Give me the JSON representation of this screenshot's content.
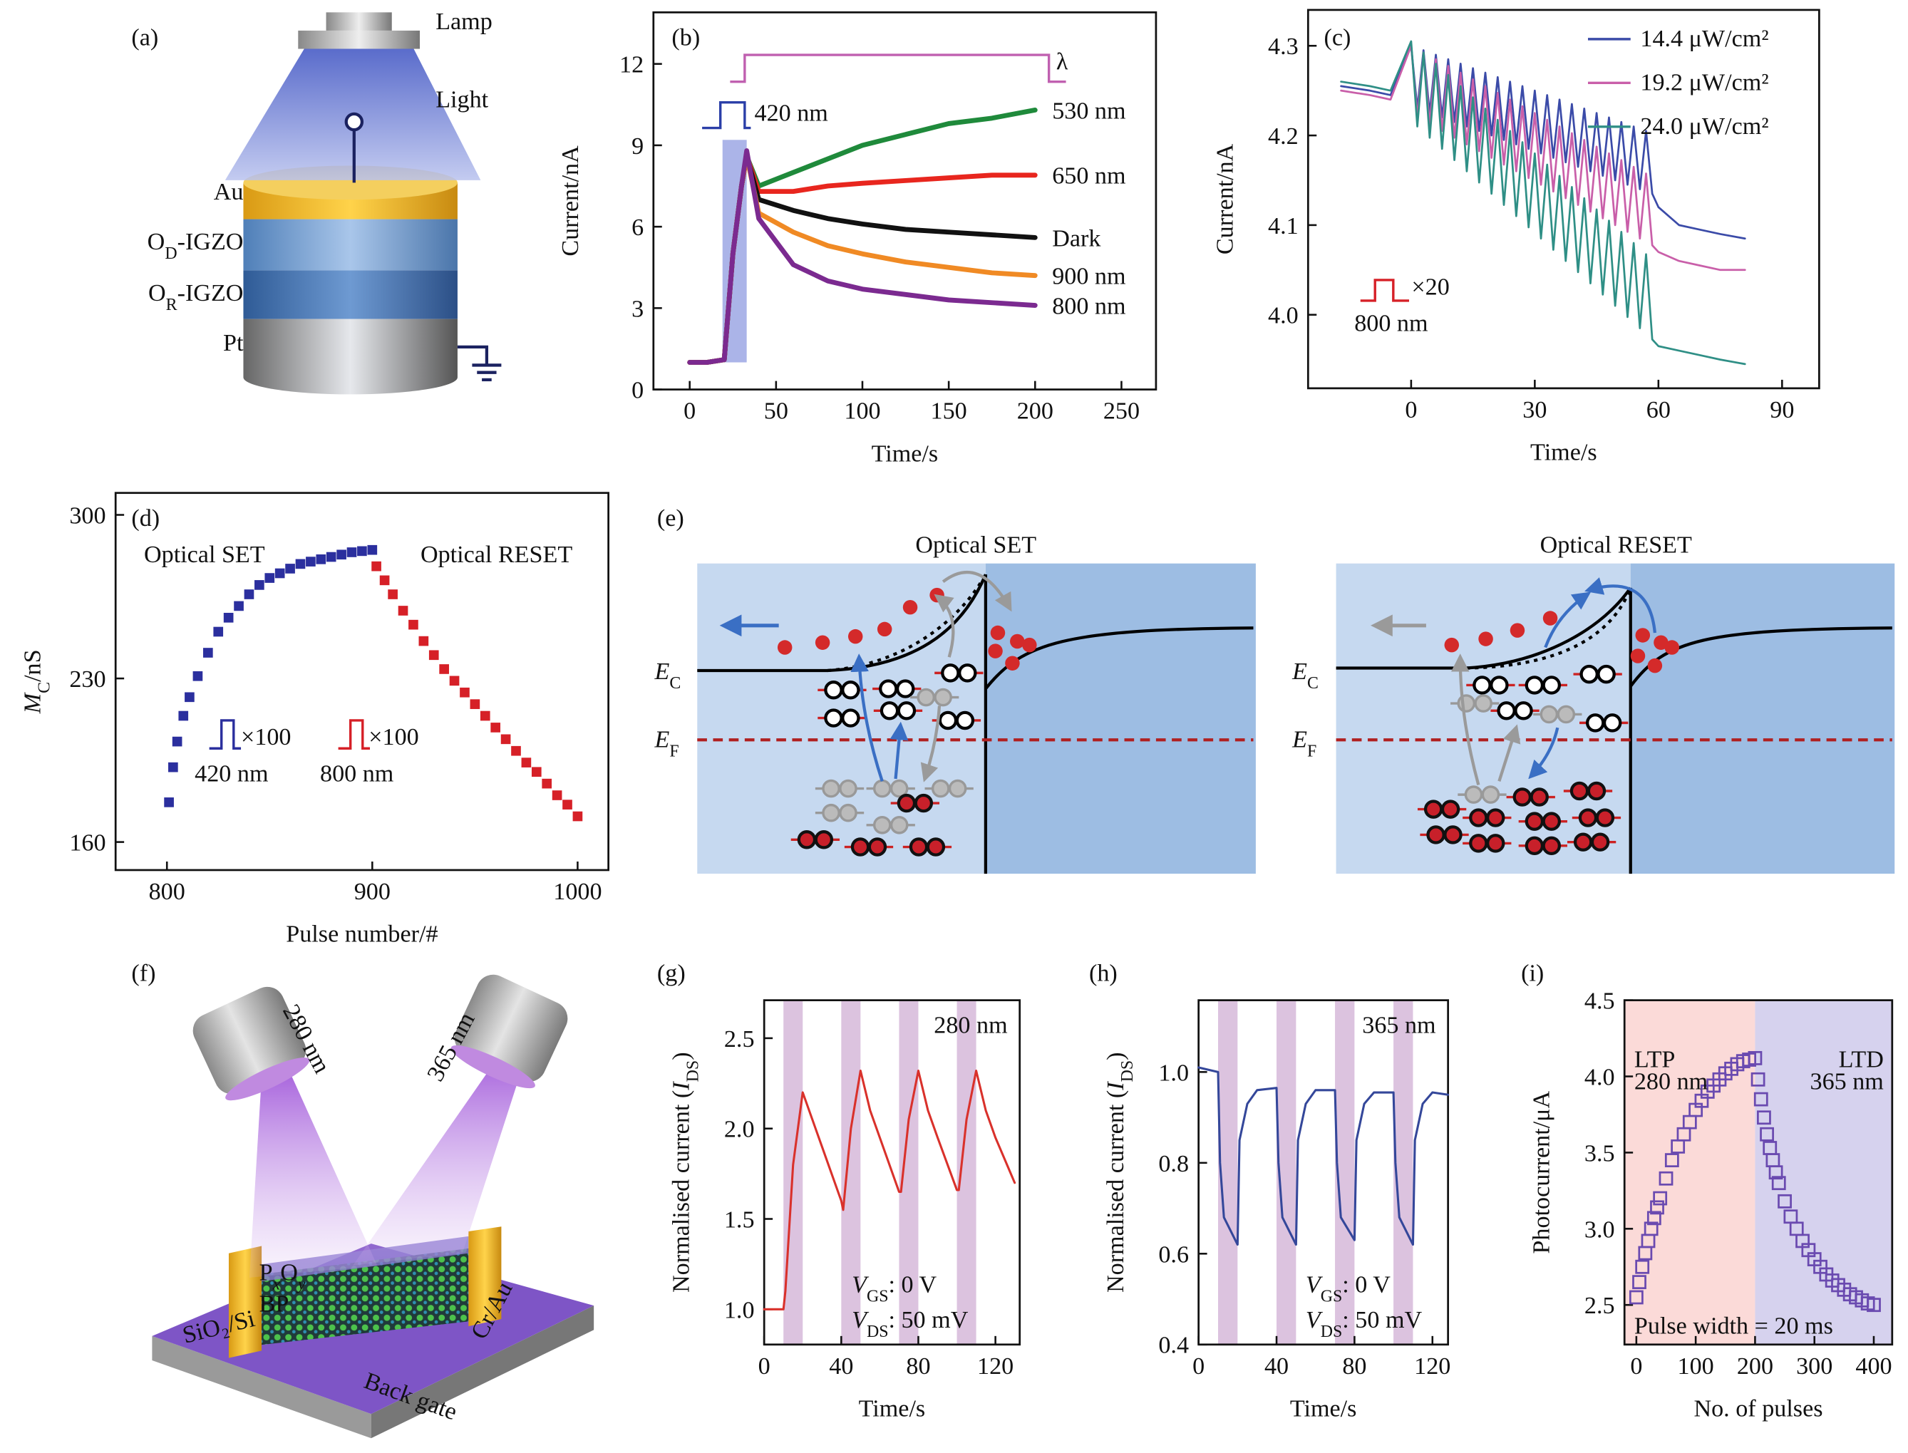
{
  "panel_labels": [
    "(a)",
    "(b)",
    "(c)",
    "(d)",
    "(e)",
    "(f)",
    "(g)",
    "(h)",
    "(i)"
  ],
  "diagram_a": {
    "lamp": "Lamp",
    "light": "Light",
    "au": "Au",
    "od": [
      "O",
      {
        "sub": "D"
      },
      "-IGZO"
    ],
    "or": [
      "O",
      {
        "sub": "R"
      },
      "-IGZO"
    ],
    "pt": "Pt"
  },
  "diagram_e": {
    "set_title": "Optical SET",
    "reset_title": "Optical RESET",
    "ec": [
      {
        "it": "E"
      },
      {
        "sub": "C"
      }
    ],
    "ef": [
      {
        "it": "E"
      },
      {
        "sub": "F"
      }
    ]
  },
  "diagram_f": {
    "lamp1": "280 nm",
    "lamp2": "365 nm",
    "pxoy": [
      "P",
      {
        "isub": "x"
      },
      "O",
      {
        "isub": "y"
      }
    ],
    "bp": "BP",
    "substrate": "SiO₂/Si",
    "electrode": "Cr/Au",
    "gate": "Back gate"
  },
  "chart_data": [
    {
      "type": "line",
      "xlabel": "Time/s",
      "ylabel": "Current/nA",
      "xlim": [
        -21,
        270
      ],
      "ylim": [
        0,
        13.9
      ],
      "xticks": [
        0,
        50,
        100,
        150,
        200,
        250
      ],
      "yticks": [
        0,
        3,
        6,
        9,
        12
      ],
      "bands": [
        {
          "x": [
            19,
            33
          ],
          "y": [
            1,
            9.2
          ]
        }
      ],
      "band_color": "#8f9be0",
      "annotations": [
        "420 nm",
        "λ"
      ],
      "line_width": 4,
      "x": [
        0,
        10,
        20,
        25,
        30,
        33,
        40,
        60,
        80,
        100,
        125,
        150,
        175,
        200
      ],
      "series": [
        {
          "name": "530 nm",
          "color": "#1f8a3b",
          "values": [
            1,
            1,
            1.1,
            5,
            7.5,
            8.6,
            7.5,
            8.0,
            8.5,
            9.0,
            9.4,
            9.8,
            10.0,
            10.3
          ]
        },
        {
          "name": "650 nm",
          "color": "#e8261e",
          "values": [
            1,
            1,
            1.1,
            5,
            7.5,
            8.6,
            7.3,
            7.3,
            7.5,
            7.6,
            7.7,
            7.8,
            7.9,
            7.9
          ]
        },
        {
          "name": "Dark",
          "color": "#111111",
          "values": [
            1,
            1,
            1.1,
            5,
            7.5,
            8.6,
            7.0,
            6.6,
            6.3,
            6.1,
            5.9,
            5.8,
            5.7,
            5.6
          ]
        },
        {
          "name": "900 nm",
          "color": "#f08a24",
          "values": [
            1,
            1,
            1.1,
            5,
            7.5,
            8.6,
            6.5,
            5.8,
            5.3,
            5.0,
            4.7,
            4.5,
            4.3,
            4.2
          ]
        },
        {
          "name": "800 nm",
          "color": "#7b2a90",
          "values": [
            1,
            1,
            1.1,
            5,
            7.5,
            8.8,
            6.3,
            4.6,
            4.0,
            3.7,
            3.5,
            3.3,
            3.2,
            3.1
          ]
        }
      ]
    },
    {
      "type": "line",
      "xlabel": "Time/s",
      "ylabel": "Current/nA",
      "xlim": [
        -25,
        99
      ],
      "ylim": [
        3.918,
        4.34
      ],
      "xticks": [
        0,
        30,
        60,
        90
      ],
      "yticks": [
        {
          "value": 4,
          "label": "4.0"
        },
        4.1,
        4.2,
        4.3
      ],
      "legend": "upper right",
      "annotations": [
        "×20",
        "800 nm"
      ],
      "line_width": 1.6,
      "x": [
        -17,
        -10,
        -5,
        0,
        1.5,
        3,
        4.5,
        6,
        7.5,
        9,
        10.5,
        12,
        13.5,
        15,
        16.5,
        18,
        19.5,
        21,
        22.5,
        24,
        25.5,
        27,
        28.5,
        30,
        31.5,
        33,
        34.5,
        36,
        37.5,
        39,
        40.5,
        42,
        43.5,
        45,
        46.5,
        48,
        49.5,
        51,
        52.5,
        54,
        55.5,
        57,
        58.5,
        60,
        65,
        70,
        75,
        81
      ],
      "series": [
        {
          "name": "14.4 μW/cm²",
          "color": "#3b4ba8",
          "values": [
            4.255,
            4.25,
            4.245,
            4.3,
            4.23,
            4.295,
            4.225,
            4.29,
            4.22,
            4.285,
            4.215,
            4.28,
            4.21,
            4.275,
            4.205,
            4.27,
            4.2,
            4.265,
            4.195,
            4.26,
            4.19,
            4.255,
            4.185,
            4.25,
            4.18,
            4.245,
            4.175,
            4.24,
            4.17,
            4.235,
            4.165,
            4.23,
            4.16,
            4.225,
            4.155,
            4.22,
            4.15,
            4.215,
            4.145,
            4.21,
            4.14,
            4.205,
            4.135,
            4.12,
            4.1,
            4.095,
            4.09,
            4.085
          ]
        },
        {
          "name": "19.2 μW/cm²",
          "color": "#c95fa9",
          "values": [
            4.25,
            4.245,
            4.24,
            4.3,
            4.22,
            4.2925,
            4.2125,
            4.285,
            4.205,
            4.2775,
            4.1975,
            4.27,
            4.19,
            4.2625,
            4.1825,
            4.255,
            4.175,
            4.2475,
            4.1675,
            4.24,
            4.16,
            4.2325,
            4.1525,
            4.225,
            4.145,
            4.2175,
            4.1375,
            4.21,
            4.13,
            4.2025,
            4.1225,
            4.195,
            4.115,
            4.1875,
            4.1075,
            4.18,
            4.1,
            4.1725,
            4.0925,
            4.165,
            4.085,
            4.1575,
            4.0775,
            4.07,
            4.06,
            4.055,
            4.05,
            4.05
          ]
        },
        {
          "name": "24.0 μW/cm²",
          "color": "#2f8f86",
          "values": [
            4.26,
            4.255,
            4.25,
            4.305,
            4.21,
            4.2925,
            4.1975,
            4.28,
            4.185,
            4.2675,
            4.1725,
            4.255,
            4.16,
            4.2425,
            4.1475,
            4.23,
            4.135,
            4.2175,
            4.1225,
            4.205,
            4.11,
            4.1925,
            4.0975,
            4.18,
            4.085,
            4.1675,
            4.0725,
            4.155,
            4.06,
            4.1425,
            4.0475,
            4.13,
            4.035,
            4.1175,
            4.0225,
            4.105,
            4.01,
            4.0925,
            3.9975,
            4.08,
            3.985,
            4.0675,
            3.9725,
            3.965,
            3.96,
            3.955,
            3.95,
            3.945
          ]
        }
      ]
    },
    {
      "type": "scatter",
      "marker": "square",
      "xlabel": "Pulse number/#",
      "ylabel": [
        {
          "it": "M"
        },
        {
          "sub": "C"
        },
        "/nS"
      ],
      "xlim": [
        775,
        1015
      ],
      "ylim": [
        148,
        309.4
      ],
      "xticks": [
        800,
        900,
        1000
      ],
      "yticks": [
        160,
        230,
        300
      ],
      "annotations": [
        "420 nm",
        "×100",
        "800 nm",
        "×100"
      ],
      "series": [
        {
          "name": "Optical SET",
          "color": "#2b2f9e",
          "x": [
            801,
            803,
            805,
            808,
            811,
            815,
            820,
            825,
            830,
            835,
            840,
            845,
            850,
            855,
            860,
            865,
            870,
            875,
            880,
            885,
            890,
            895,
            900
          ],
          "values": [
            177,
            192,
            203,
            214,
            222,
            231,
            241,
            250,
            256,
            261,
            266,
            270,
            273,
            275,
            277,
            279,
            280,
            281,
            282,
            283,
            284,
            284.5,
            285
          ]
        },
        {
          "name": "Optical RESET",
          "color": "#d62027",
          "x": [
            902,
            906,
            910,
            915,
            920,
            925,
            930,
            935,
            940,
            945,
            950,
            955,
            960,
            965,
            970,
            975,
            980,
            985,
            990,
            995,
            1000
          ],
          "values": [
            278,
            272,
            266,
            259,
            253,
            246,
            240,
            234,
            229,
            224,
            219,
            214,
            209,
            204,
            199,
            194,
            190,
            185,
            180,
            176,
            171
          ]
        }
      ]
    },
    {
      "type": "line",
      "xlabel": "Time/s",
      "ylabel": [
        "Normalised current (",
        {
          "it": "I"
        },
        {
          "sub": "DS"
        },
        ")"
      ],
      "title": "280 nm",
      "color": "#d9312b",
      "line_width": 1.8,
      "xlim": [
        0,
        132.6
      ],
      "ylim": [
        0.805,
        2.71
      ],
      "xticks": [
        0,
        40,
        80,
        120
      ],
      "yticks": [
        {
          "value": 1,
          "label": "1.0"
        },
        1.5,
        {
          "value": 2,
          "label": "2.0"
        },
        2.5
      ],
      "bands": [
        {
          "x": [
            10,
            20
          ]
        },
        {
          "x": [
            40,
            50
          ]
        },
        {
          "x": [
            70,
            80
          ]
        },
        {
          "x": [
            100,
            110
          ]
        }
      ],
      "band_color": "#dcc3df",
      "annotations": [
        [
          {
            "it": "V"
          },
          {
            "sub": "GS"
          },
          ": 0 V"
        ],
        [
          {
            "it": "V"
          },
          {
            "sub": "DS"
          },
          ": 50 mV"
        ]
      ],
      "x": [
        0,
        10,
        11,
        15,
        20,
        25,
        30,
        40,
        41,
        45,
        50,
        55,
        60,
        70,
        71,
        75,
        80,
        85,
        90,
        100,
        101,
        105,
        110,
        115,
        120,
        130
      ],
      "values": [
        1.0,
        1.0,
        1.1,
        1.8,
        2.2,
        2.05,
        1.9,
        1.6,
        1.55,
        2.0,
        2.32,
        2.1,
        1.95,
        1.65,
        1.65,
        2.05,
        2.32,
        2.1,
        1.95,
        1.66,
        1.66,
        2.05,
        2.32,
        2.1,
        1.95,
        1.7
      ]
    },
    {
      "type": "line",
      "xlabel": "Time/s",
      "ylabel": [
        "Normalised current (",
        {
          "it": "I"
        },
        {
          "sub": "DS"
        },
        ")"
      ],
      "title": "365 nm",
      "color": "#34479a",
      "line_width": 1.8,
      "xlim": [
        0,
        128
      ],
      "ylim": [
        0.4,
        1.158
      ],
      "xticks": [
        0,
        40,
        80,
        120
      ],
      "yticks": [
        0.4,
        0.6,
        0.8,
        {
          "value": 1,
          "label": "1.0"
        }
      ],
      "bands": [
        {
          "x": [
            10,
            20
          ]
        },
        {
          "x": [
            40,
            50
          ]
        },
        {
          "x": [
            70,
            80
          ]
        },
        {
          "x": [
            100,
            110
          ]
        }
      ],
      "band_color": "#dcc3df",
      "annotations": [
        [
          {
            "it": "V"
          },
          {
            "sub": "GS"
          },
          ": 0 V"
        ],
        [
          {
            "it": "V"
          },
          {
            "sub": "DS"
          },
          ": 50 mV"
        ]
      ],
      "x": [
        0,
        10,
        11,
        13,
        20,
        21,
        25,
        30,
        40,
        41,
        43,
        50,
        51,
        55,
        60,
        70,
        71,
        73,
        80,
        81,
        85,
        90,
        100,
        101,
        103,
        110,
        111,
        115,
        120,
        128
      ],
      "values": [
        1.01,
        1.0,
        0.8,
        0.68,
        0.62,
        0.85,
        0.93,
        0.96,
        0.965,
        0.8,
        0.68,
        0.62,
        0.85,
        0.93,
        0.96,
        0.96,
        0.8,
        0.68,
        0.63,
        0.85,
        0.93,
        0.955,
        0.955,
        0.8,
        0.68,
        0.62,
        0.85,
        0.93,
        0.955,
        0.95
      ]
    },
    {
      "type": "scatter",
      "marker": "open-square",
      "color": "#6a4ab0",
      "xlabel": "No. of pulses",
      "ylabel": "Photocurrent/μA",
      "xlim": [
        -20,
        431
      ],
      "ylim": [
        2.24,
        4.5
      ],
      "xticks": [
        0,
        100,
        200,
        300,
        400
      ],
      "yticks": [
        2.5,
        {
          "value": 3,
          "label": "3.0"
        },
        3.5,
        {
          "value": 4,
          "label": "4.0"
        },
        4.5
      ],
      "regions": [
        {
          "x": [
            -20,
            200
          ],
          "color": "#fbdad8"
        },
        {
          "x": [
            200,
            431
          ],
          "color": "#d6d2ee"
        }
      ],
      "annotations": [
        "LTP",
        "280 nm",
        "LTD",
        "365 nm",
        "Pulse width = 20 ms"
      ],
      "x": [
        0,
        5,
        10,
        15,
        20,
        25,
        30,
        35,
        40,
        50,
        60,
        70,
        80,
        90,
        100,
        110,
        120,
        130,
        140,
        150,
        160,
        170,
        180,
        190,
        200,
        205,
        210,
        215,
        220,
        225,
        230,
        235,
        240,
        250,
        260,
        270,
        280,
        290,
        300,
        310,
        320,
        330,
        340,
        350,
        360,
        370,
        380,
        390,
        400
      ],
      "values": [
        2.55,
        2.65,
        2.75,
        2.84,
        2.92,
        3.0,
        3.07,
        3.14,
        3.2,
        3.33,
        3.45,
        3.54,
        3.62,
        3.7,
        3.78,
        3.84,
        3.9,
        3.94,
        3.98,
        4.02,
        4.05,
        4.08,
        4.1,
        4.11,
        4.12,
        3.98,
        3.85,
        3.73,
        3.62,
        3.53,
        3.45,
        3.37,
        3.3,
        3.18,
        3.08,
        3.0,
        2.92,
        2.86,
        2.8,
        2.75,
        2.7,
        2.66,
        2.63,
        2.6,
        2.57,
        2.55,
        2.53,
        2.51,
        2.5
      ]
    }
  ]
}
